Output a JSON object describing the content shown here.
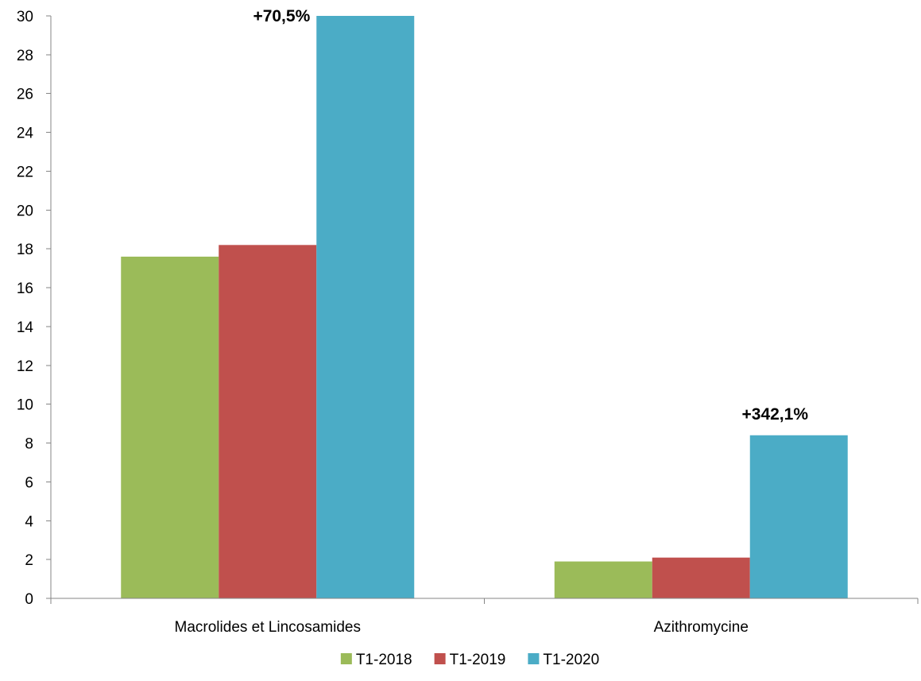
{
  "chart_data": {
    "type": "bar",
    "categories": [
      "Macrolides et Lincosamides",
      "Azithromycine"
    ],
    "series": [
      {
        "name": "T1-2018",
        "color": "#9BBB59",
        "values": [
          17.6,
          1.9
        ]
      },
      {
        "name": "T1-2019",
        "color": "#C0504D",
        "values": [
          18.2,
          2.1
        ]
      },
      {
        "name": "T1-2020",
        "color": "#4BACC6",
        "values": [
          30.0,
          8.4
        ]
      }
    ],
    "annotations": [
      {
        "text": "+70,5%",
        "category_index": 0,
        "series_index": 2
      },
      {
        "text": "+342,1%",
        "category_index": 1,
        "series_index": 2
      }
    ],
    "ylim": [
      0,
      30
    ],
    "yticks": [
      0,
      2,
      4,
      6,
      8,
      10,
      12,
      14,
      16,
      18,
      20,
      22,
      24,
      26,
      28,
      30
    ],
    "grid": false,
    "legend_position": "bottom",
    "title": "",
    "xlabel": "",
    "ylabel": ""
  }
}
